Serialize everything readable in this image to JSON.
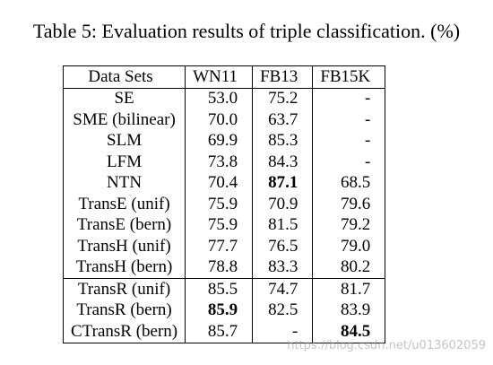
{
  "caption": "Table 5: Evaluation results of triple classification. (%)",
  "table": {
    "columns": [
      "Data Sets",
      "WN11",
      "FB13",
      "FB15K"
    ],
    "rows": [
      [
        {
          "text": "SE"
        },
        {
          "text": "53.0"
        },
        {
          "text": "75.2"
        },
        {
          "text": "-"
        }
      ],
      [
        {
          "text": "SME (bilinear)"
        },
        {
          "text": "70.0"
        },
        {
          "text": "63.7"
        },
        {
          "text": "-"
        }
      ],
      [
        {
          "text": "SLM"
        },
        {
          "text": "69.9"
        },
        {
          "text": "85.3"
        },
        {
          "text": "-"
        }
      ],
      [
        {
          "text": "LFM"
        },
        {
          "text": "73.8"
        },
        {
          "text": "84.3"
        },
        {
          "text": "-"
        }
      ],
      [
        {
          "text": "NTN"
        },
        {
          "text": "70.4"
        },
        {
          "text": "87.1",
          "bold": true
        },
        {
          "text": "68.5"
        }
      ],
      [
        {
          "text": "TransE (unif)"
        },
        {
          "text": "75.9"
        },
        {
          "text": "70.9"
        },
        {
          "text": "79.6"
        }
      ],
      [
        {
          "text": "TransE (bern)"
        },
        {
          "text": "75.9"
        },
        {
          "text": "81.5"
        },
        {
          "text": "79.2"
        }
      ],
      [
        {
          "text": "TransH (unif)"
        },
        {
          "text": "77.7"
        },
        {
          "text": "76.5"
        },
        {
          "text": "79.0"
        }
      ],
      [
        {
          "text": "TransH (bern)"
        },
        {
          "text": "78.8"
        },
        {
          "text": "83.3"
        },
        {
          "text": "80.2"
        }
      ],
      [
        {
          "text": "TransR (unif)"
        },
        {
          "text": "85.5"
        },
        {
          "text": "74.7"
        },
        {
          "text": "81.7"
        }
      ],
      [
        {
          "text": "TransR (bern)"
        },
        {
          "text": "85.9",
          "bold": true
        },
        {
          "text": "82.5"
        },
        {
          "text": "83.9"
        }
      ],
      [
        {
          "text": "CTransR (bern)"
        },
        {
          "text": "85.7"
        },
        {
          "text": "-"
        },
        {
          "text": "84.5",
          "bold": true
        }
      ]
    ],
    "separator_before_rows": [
      9
    ]
  },
  "watermark": "https://blog.csdn.net/u013602059"
}
